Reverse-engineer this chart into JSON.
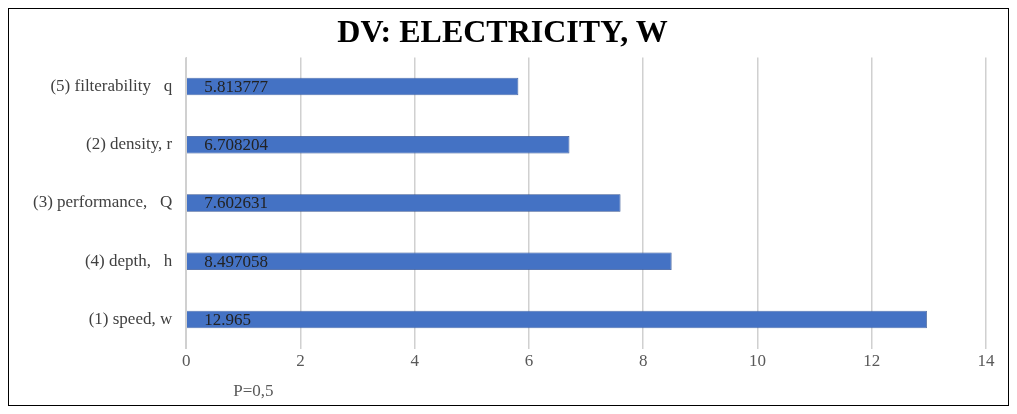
{
  "chart_data": {
    "type": "bar",
    "orientation": "horizontal",
    "title": "DV: ELECTRICITY, W",
    "categories": [
      "(5) filterability   q",
      "(2) density, r",
      "(3) performance,   Q",
      "(4) depth,   h",
      "(1) speed, w"
    ],
    "values": [
      5.813777,
      6.708204,
      7.602631,
      8.497058,
      12.965
    ],
    "color": "#4472c4",
    "xlim": [
      0,
      14
    ],
    "xticks": [
      0,
      2,
      4,
      6,
      8,
      10,
      12,
      14
    ],
    "grid": "x",
    "data_labels": true,
    "annotations": [
      "P=0,5"
    ]
  }
}
